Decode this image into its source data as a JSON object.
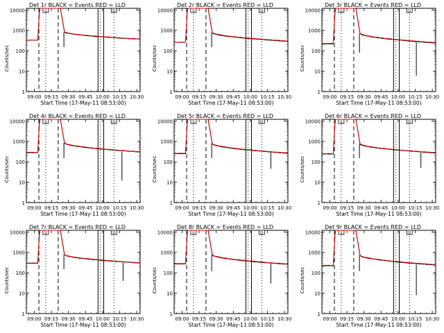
{
  "xlabel": "Start Time (17-May-11 08:53:00)",
  "ylabel": "Counts/sec",
  "xticks": [
    "09:00",
    "09:15",
    "09:30",
    "09:45",
    "10:00",
    "10:15",
    "10:30"
  ],
  "yticks": [
    "1",
    "10",
    "100",
    "1000",
    "10000"
  ],
  "colors": {
    "events": "#000000",
    "lld": "#dd0000"
  },
  "panel_markers": {
    "s_label": "S",
    "d_label": "D"
  },
  "chart_data": [
    {
      "type": "line",
      "title": "Det 1r  BLACK = Events  RED = LLD",
      "xlabel": "Start Time (17-May-11 08:53:00)",
      "ylabel": "Counts/sec",
      "xlim": [
        "08:53",
        "10:33"
      ],
      "ylim": [
        1,
        12000
      ],
      "yscale": "log",
      "series": [
        {
          "name": "Events",
          "baseline": 330,
          "peak_start": "09:03",
          "peak_end": "09:25",
          "plateau": 520,
          "end": 370,
          "spike_time": "09:26",
          "spike_min": 150,
          "dip_time": null,
          "dip_min": null
        },
        {
          "name": "LLD",
          "baseline": 330,
          "plateau": 540,
          "end": 380
        }
      ],
      "vlines_dashed": [
        "09:04",
        "09:21"
      ],
      "vlines_dotted": [
        "09:10",
        "09:58",
        "10:10"
      ],
      "vlines_solid": [
        "09:56",
        "10:01"
      ]
    },
    {
      "type": "line",
      "title": "Det 2r  BLACK = Events  RED = LLD",
      "xlabel": "Start Time (17-May-11 08:53:00)",
      "ylabel": "Counts/sec",
      "xlim": [
        "08:53",
        "10:33"
      ],
      "ylim": [
        1,
        12000
      ],
      "yscale": "log",
      "series": [
        {
          "name": "Events",
          "baseline": 260,
          "peak_start": "09:03",
          "peak_end": "09:25",
          "plateau": 480,
          "end": 290,
          "spike_time": "09:26",
          "spike_min": 150,
          "dip_time": null,
          "dip_min": null
        },
        {
          "name": "LLD",
          "baseline": 260,
          "plateau": 500,
          "end": 300
        }
      ],
      "vlines_dashed": [
        "09:04",
        "09:21"
      ],
      "vlines_dotted": [
        "09:10",
        "09:58",
        "10:10"
      ],
      "vlines_solid": [
        "09:56",
        "10:01"
      ]
    },
    {
      "type": "line",
      "title": "Det 3r  BLACK = Events  RED = LLD",
      "xlabel": "Start Time (17-May-11 08:53:00)",
      "ylabel": "Counts/sec",
      "xlim": [
        "08:53",
        "10:33"
      ],
      "ylim": [
        1,
        12000
      ],
      "yscale": "log",
      "series": [
        {
          "name": "Events",
          "baseline": 220,
          "peak_start": "09:03",
          "peak_end": "09:25",
          "plateau": 440,
          "end": 240,
          "spike_time": "09:26",
          "spike_min": 80,
          "dip_time": "10:16",
          "dip_min": 6
        },
        {
          "name": "LLD",
          "baseline": 230,
          "plateau": 460,
          "end": 250
        }
      ],
      "vlines_dashed": [
        "09:04",
        "09:21"
      ],
      "vlines_dotted": [
        "09:10",
        "09:58",
        "10:10"
      ],
      "vlines_solid": [
        "09:56",
        "10:01"
      ]
    },
    {
      "type": "line",
      "title": "Det 4r  BLACK = Events  RED = LLD",
      "xlabel": "Start Time (17-May-11 08:53:00)",
      "ylabel": "Counts/sec",
      "xlim": [
        "08:53",
        "10:33"
      ],
      "ylim": [
        1,
        12000
      ],
      "yscale": "log",
      "series": [
        {
          "name": "Events",
          "baseline": 280,
          "peak_start": "09:03",
          "peak_end": "09:25",
          "plateau": 520,
          "end": 300,
          "spike_time": "09:26",
          "spike_min": 150,
          "dip_time": "10:17",
          "dip_min": 12
        },
        {
          "name": "LLD",
          "baseline": 290,
          "plateau": 540,
          "end": 310
        }
      ],
      "vlines_dashed": [
        "09:04",
        "09:21"
      ],
      "vlines_dotted": [
        "09:10",
        "09:58",
        "10:10"
      ],
      "vlines_solid": [
        "09:56",
        "10:01"
      ]
    },
    {
      "type": "line",
      "title": "Det 5r  BLACK = Events  RED = LLD",
      "xlabel": "Start Time (17-May-11 08:53:00)",
      "ylabel": "Counts/sec",
      "xlim": [
        "08:53",
        "10:33"
      ],
      "ylim": [
        1,
        12000
      ],
      "yscale": "log",
      "series": [
        {
          "name": "Events",
          "baseline": 250,
          "peak_start": "09:03",
          "peak_end": "09:25",
          "plateau": 480,
          "end": 260,
          "spike_time": "09:26",
          "spike_min": 150,
          "dip_time": "10:18",
          "dip_min": 45
        },
        {
          "name": "LLD",
          "baseline": 260,
          "plateau": 500,
          "end": 270
        }
      ],
      "vlines_dashed": [
        "09:04",
        "09:21"
      ],
      "vlines_dotted": [
        "09:10",
        "09:58",
        "10:10"
      ],
      "vlines_solid": [
        "09:56",
        "10:01"
      ]
    },
    {
      "type": "line",
      "title": "Det 6r  BLACK = Events  RED = LLD",
      "xlabel": "Start Time (17-May-11 08:53:00)",
      "ylabel": "Counts/sec",
      "xlim": [
        "08:53",
        "10:33"
      ],
      "ylim": [
        1,
        12000
      ],
      "yscale": "log",
      "series": [
        {
          "name": "Events",
          "baseline": 240,
          "peak_start": "09:03",
          "peak_end": "09:25",
          "plateau": 460,
          "end": 270,
          "spike_time": "09:26",
          "spike_min": 150,
          "dip_time": "10:20",
          "dip_min": 50
        },
        {
          "name": "LLD",
          "baseline": 250,
          "plateau": 480,
          "end": 280
        }
      ],
      "vlines_dashed": [
        "09:04",
        "09:21"
      ],
      "vlines_dotted": [
        "09:10",
        "09:58",
        "10:10"
      ],
      "vlines_solid": [
        "09:56",
        "10:01"
      ]
    },
    {
      "type": "line",
      "title": "Det 7r  BLACK = Events  RED = LLD",
      "xlabel": "Start Time (17-May-11 08:53:00)",
      "ylabel": "Counts/sec",
      "xlim": [
        "08:53",
        "10:33"
      ],
      "ylim": [
        1,
        12000
      ],
      "yscale": "log",
      "series": [
        {
          "name": "Events",
          "baseline": 290,
          "peak_start": "09:03",
          "peak_end": "09:25",
          "plateau": 480,
          "end": 300,
          "spike_time": "09:26",
          "spike_min": 150,
          "dip_time": "10:18",
          "dip_min": 40
        },
        {
          "name": "LLD",
          "baseline": 300,
          "plateau": 500,
          "end": 310
        }
      ],
      "vlines_dashed": [
        "09:04",
        "09:21"
      ],
      "vlines_dotted": [
        "09:10",
        "09:58",
        "10:10"
      ],
      "vlines_solid": [
        "09:56",
        "10:01"
      ]
    },
    {
      "type": "line",
      "title": "Det 8r  BLACK = Events  RED = LLD",
      "xlabel": "Start Time (17-May-11 08:53:00)",
      "ylabel": "Counts/sec",
      "xlim": [
        "08:53",
        "10:33"
      ],
      "ylim": [
        1,
        12000
      ],
      "yscale": "log",
      "series": [
        {
          "name": "Events",
          "baseline": 270,
          "peak_start": "09:03",
          "peak_end": "09:25",
          "plateau": 470,
          "end": 260,
          "spike_time": "09:26",
          "spike_min": 120,
          "dip_time": "10:18",
          "dip_min": 30
        },
        {
          "name": "LLD",
          "baseline": 280,
          "plateau": 490,
          "end": 270
        }
      ],
      "vlines_dashed": [
        "09:04",
        "09:21"
      ],
      "vlines_dotted": [
        "09:10",
        "09:58",
        "10:10"
      ],
      "vlines_solid": [
        "09:56",
        "10:01"
      ]
    },
    {
      "type": "line",
      "title": "Det 9r  BLACK = Events  RED = LLD",
      "xlabel": "Start Time (17-May-11 08:53:00)",
      "ylabel": "Counts/sec",
      "xlim": [
        "08:53",
        "10:33"
      ],
      "ylim": [
        1,
        12000
      ],
      "yscale": "log",
      "series": [
        {
          "name": "Events",
          "baseline": 220,
          "peak_start": "09:03",
          "peak_end": "09:25",
          "plateau": 440,
          "end": 240,
          "spike_time": "09:26",
          "spike_min": 120,
          "dip_time": "10:16",
          "dip_min": 8
        },
        {
          "name": "LLD",
          "baseline": 230,
          "plateau": 460,
          "end": 250
        }
      ],
      "vlines_dashed": [
        "09:04",
        "09:21"
      ],
      "vlines_dotted": [
        "09:10",
        "09:58",
        "10:10"
      ],
      "vlines_solid": [
        "09:56",
        "10:01"
      ]
    }
  ]
}
